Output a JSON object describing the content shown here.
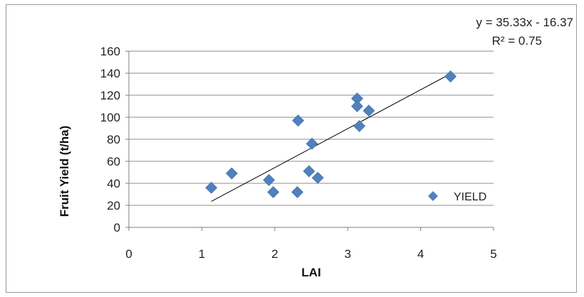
{
  "chart_data": {
    "type": "scatter",
    "title": "",
    "xlabel": "LAI",
    "ylabel": "Fruit Yield (t/ha)",
    "xlim": [
      0,
      5
    ],
    "ylim": [
      0,
      160
    ],
    "x_ticks": [
      0,
      1,
      2,
      3,
      4,
      5
    ],
    "y_ticks": [
      0,
      20,
      40,
      60,
      80,
      100,
      120,
      140,
      160
    ],
    "grid": "horizontal",
    "legend_position": "bottom-right",
    "series": [
      {
        "name": "YIELD",
        "color": "#4f81bd",
        "marker": "diamond",
        "points": [
          {
            "x": 1.13,
            "y": 36
          },
          {
            "x": 1.41,
            "y": 49
          },
          {
            "x": 1.92,
            "y": 43
          },
          {
            "x": 1.98,
            "y": 32
          },
          {
            "x": 2.32,
            "y": 97
          },
          {
            "x": 2.31,
            "y": 32
          },
          {
            "x": 2.47,
            "y": 51
          },
          {
            "x": 2.51,
            "y": 76
          },
          {
            "x": 2.59,
            "y": 45
          },
          {
            "x": 3.13,
            "y": 117
          },
          {
            "x": 3.13,
            "y": 110
          },
          {
            "x": 3.16,
            "y": 92
          },
          {
            "x": 3.29,
            "y": 106
          },
          {
            "x": 4.41,
            "y": 137
          }
        ]
      }
    ],
    "trendline": {
      "type": "linear",
      "slope": 35.33,
      "intercept": -16.37,
      "x_range": [
        1.13,
        4.41
      ],
      "color": "#000000",
      "equation_label": "y = 35.33x - 16.37",
      "r2_label": "R² = 0.75"
    }
  }
}
